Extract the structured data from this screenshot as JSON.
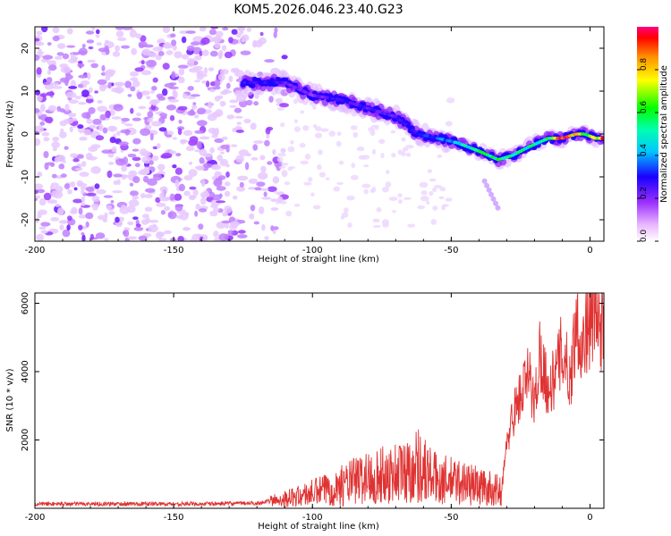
{
  "title": "KOM5.2026.046.23.40.G23",
  "chart_data": [
    {
      "type": "heatmap",
      "title": "KOM5.2026.046.23.40.G23",
      "xlabel": "Height of straight line (km)",
      "ylabel": "Frequency (Hz)",
      "xlim": [
        -200,
        5
      ],
      "ylim": [
        -25,
        25
      ],
      "xticks": [
        -200,
        -150,
        -100,
        -50,
        0
      ],
      "yticks": [
        20,
        10,
        0,
        -10,
        -20
      ],
      "colorbar": {
        "label": "Normalized spectral amplitude",
        "range": [
          0,
          1
        ],
        "ticks": [
          "0.0",
          "0.2",
          "0.4",
          "0.6",
          "0.8"
        ]
      },
      "ridge": {
        "x": [
          -125,
          -117,
          -110,
          -100,
          -90,
          -80,
          -70,
          -62,
          -55,
          -48,
          -40,
          -33,
          -28,
          -22,
          -15,
          -10,
          -5,
          -2,
          2,
          5
        ],
        "y": [
          12,
          12,
          12,
          9,
          8,
          6,
          4,
          0,
          -1,
          -2,
          -4,
          -6,
          -5,
          -3,
          -1,
          -1,
          0,
          0,
          -1,
          -1
        ],
        "amplitude": [
          0.3,
          0.3,
          0.25,
          0.2,
          0.3,
          0.25,
          0.25,
          0.3,
          0.35,
          0.45,
          0.55,
          0.6,
          0.55,
          0.55,
          0.6,
          0.95,
          0.8,
          0.6,
          0.75,
          0.9
        ]
      }
    },
    {
      "type": "line",
      "xlabel": "Height of straight line (km)",
      "ylabel": "SNR (10 * v/v)",
      "xlim": [
        -200,
        5
      ],
      "ylim": [
        0,
        6300
      ],
      "xticks": [
        -200,
        -150,
        -100,
        -50,
        0
      ],
      "yticks": [
        2000,
        4000,
        6000
      ],
      "color": "#e03232",
      "series": [
        {
          "name": "SNR",
          "x": [
            -200,
            -180,
            -160,
            -140,
            -120,
            -112,
            -105,
            -100,
            -95,
            -90,
            -85,
            -80,
            -75,
            -70,
            -65,
            -62,
            -58,
            -55,
            -50,
            -45,
            -40,
            -35,
            -32,
            -30,
            -28,
            -25,
            -22,
            -20,
            -18,
            -15,
            -12,
            -10,
            -7,
            -5,
            -3,
            -1,
            2,
            5
          ],
          "y": [
            130,
            130,
            130,
            130,
            150,
            250,
            350,
            450,
            550,
            650,
            800,
            900,
            950,
            1050,
            1100,
            1300,
            1000,
            850,
            800,
            750,
            650,
            550,
            500,
            1800,
            2700,
            3300,
            3900,
            3000,
            4600,
            3400,
            4000,
            4700,
            3700,
            5600,
            4700,
            5300,
            5600,
            5200
          ]
        }
      ]
    }
  ]
}
